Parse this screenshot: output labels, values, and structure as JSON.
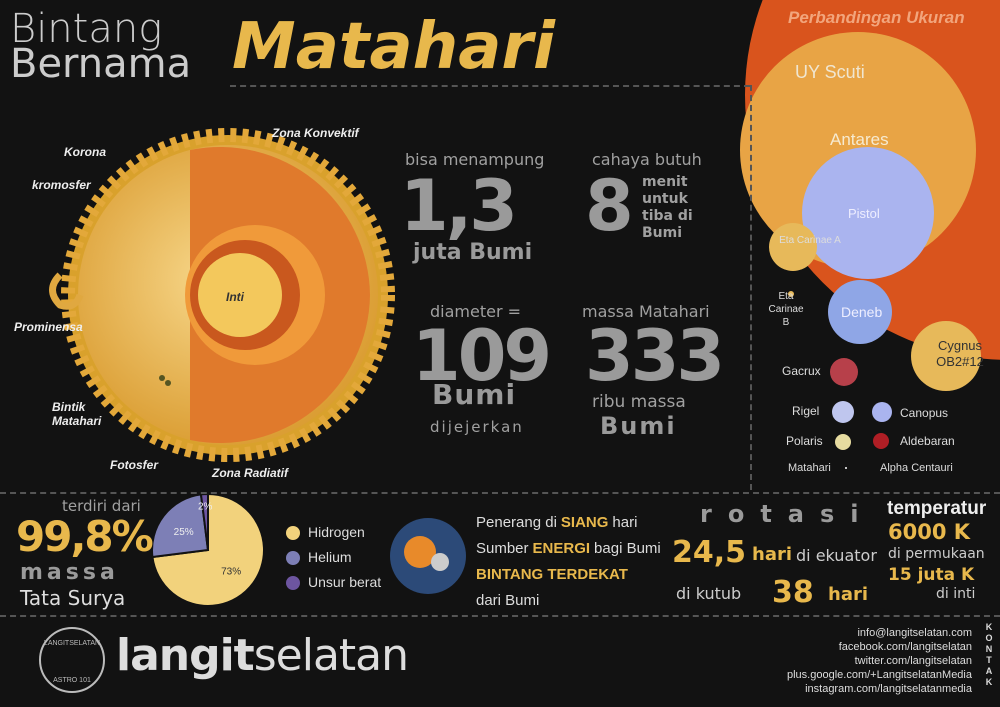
{
  "header": {
    "title_line1": "Bintang",
    "title_line2": "Bernama",
    "title_main": "Matahari"
  },
  "sun_diagram": {
    "labels": {
      "korona": "Korona",
      "kromosfer": "kromosfer",
      "prominensa": "Prominensa",
      "bintik": "Bintik Matahari",
      "fotosfer": "Fotosfer",
      "radiatif": "Zona Radiatif",
      "konvektif": "Zona Konvektif",
      "inti": "Inti"
    }
  },
  "facts": [
    {
      "caption": "bisa menampung",
      "number": "1,3",
      "unit": "juta Bumi"
    },
    {
      "caption": "cahaya butuh",
      "number": "8",
      "unit": "menit untuk tiba di Bumi"
    },
    {
      "caption": "diameter =",
      "number": "109",
      "unit": "Bumi",
      "note": "dijejerkan"
    },
    {
      "caption": "massa Matahari",
      "number": "333",
      "unit": "ribu massa",
      "note": "Bumi"
    }
  ],
  "size_comparison": {
    "title": "Perbandingan Ukuran",
    "stars": [
      "UY Scuti",
      "Antares",
      "Pistol",
      "Eta Carinae A",
      "Eta Carinae B",
      "Deneb",
      "Cygnus OB2#12",
      "Gacrux",
      "Rigel",
      "Canopus",
      "Polaris",
      "Aldebaran",
      "Matahari",
      "Alpha Centauri"
    ]
  },
  "mass_share": {
    "caption": "terdiri dari",
    "value": "99,8%",
    "line1": "massa",
    "line2": "Tata Surya"
  },
  "chart_data": {
    "type": "pie",
    "categories": [
      "Hidrogen",
      "Helium",
      "Unsur berat"
    ],
    "values": [
      73,
      25,
      2
    ],
    "value_labels": [
      "73%",
      "25%",
      "2%"
    ],
    "colors": [
      "#f2d27c",
      "#7d7fb6",
      "#6d55a0"
    ]
  },
  "features": {
    "lines": [
      [
        {
          "t": "Penerang di",
          "b": false
        },
        {
          "t": "SIANG",
          "b": true
        },
        {
          "t": "hari",
          "b": false
        }
      ],
      [
        {
          "t": "Sumber",
          "b": false
        },
        {
          "t": "ENERGI",
          "b": true
        },
        {
          "t": "bagi Bumi",
          "b": false
        }
      ],
      [
        {
          "t": "BINTANG TERDEKAT",
          "b": true
        }
      ],
      [
        {
          "t": "dari Bumi",
          "b": false
        }
      ]
    ]
  },
  "rotation": {
    "title": "rotasi",
    "equator_value": "24,5",
    "equator_unit": "hari",
    "equator_label": "di ekuator",
    "pole_label": "di kutub",
    "pole_value": "38",
    "pole_unit": "hari"
  },
  "temperature": {
    "title": "temperatur",
    "surface_value": "6000 K",
    "surface_label": "di permukaan",
    "core_value": "15 juta K",
    "core_label": "di inti"
  },
  "footer": {
    "brand_part1": "langit",
    "brand_part2": "selatan",
    "logo_top": "LANGITSELATAN",
    "logo_bottom": "ASTRO 101",
    "contact_label": "KONTAK",
    "contacts": [
      "info@langitselatan.com",
      "facebook.com/langitselatan",
      "twitter.com/langitselatan",
      "plus.google.com/+LangitselatanMedia",
      "instagram.com/langitselatanmedia"
    ]
  }
}
